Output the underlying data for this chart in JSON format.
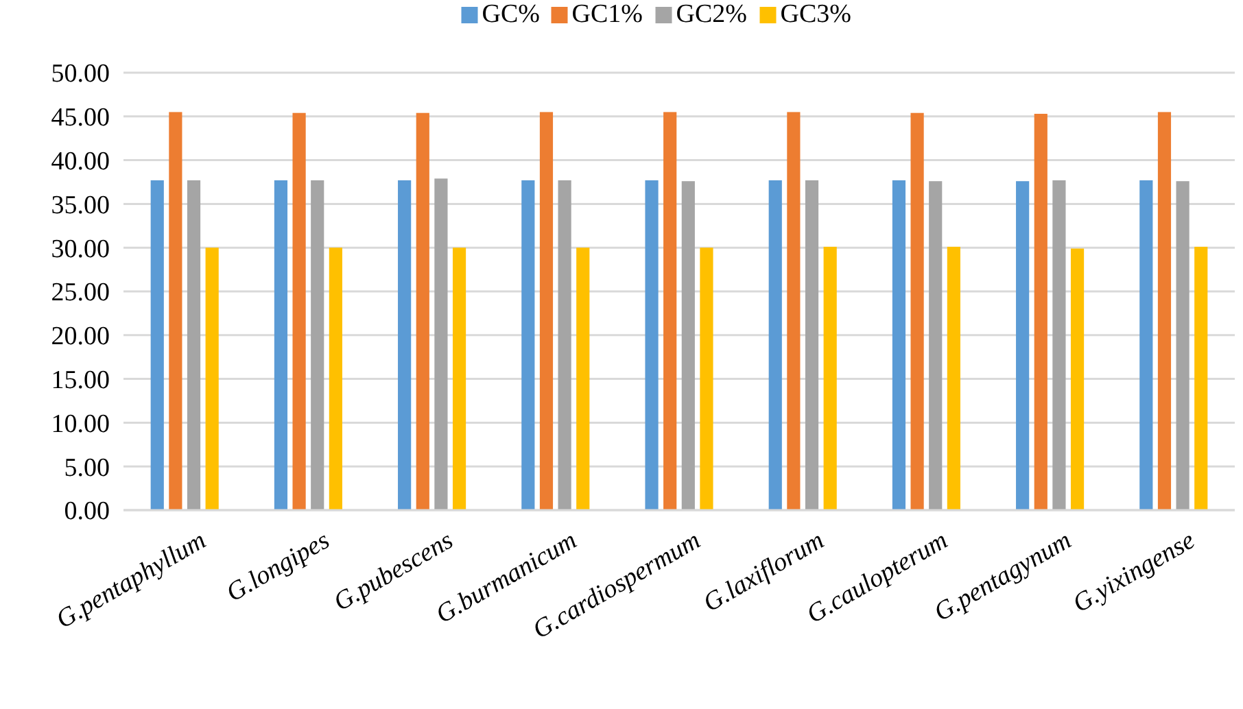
{
  "chart_data": {
    "type": "bar",
    "categories": [
      "G.pentaphyllum",
      "G.longipes",
      "G.pubescens",
      "G.burmanicum",
      "G.cardiospermum",
      "G.laxiflorum",
      "G.caulopterum",
      "G.pentagynum",
      "G.yixingense"
    ],
    "series": [
      {
        "name": "GC%",
        "color": "#5b9bd5",
        "values": [
          37.7,
          37.7,
          37.7,
          37.7,
          37.7,
          37.7,
          37.7,
          37.6,
          37.7
        ]
      },
      {
        "name": "GC1%",
        "color": "#ed7d31",
        "values": [
          45.5,
          45.4,
          45.4,
          45.5,
          45.5,
          45.5,
          45.4,
          45.3,
          45.5
        ]
      },
      {
        "name": "GC2%",
        "color": "#a5a5a5",
        "values": [
          37.7,
          37.7,
          37.9,
          37.7,
          37.6,
          37.7,
          37.6,
          37.7,
          37.6
        ]
      },
      {
        "name": "GC3%",
        "color": "#ffc000",
        "values": [
          30.0,
          30.0,
          30.0,
          30.0,
          30.0,
          30.1,
          30.1,
          29.9,
          30.1
        ]
      }
    ],
    "ylim": [
      0,
      50
    ],
    "yticks": [
      {
        "value": 0,
        "label": "0.00"
      },
      {
        "value": 5,
        "label": "5.00"
      },
      {
        "value": 10,
        "label": "10.00"
      },
      {
        "value": 15,
        "label": "15.00"
      },
      {
        "value": 20,
        "label": "20.00"
      },
      {
        "value": 25,
        "label": "25.00"
      },
      {
        "value": 30,
        "label": "30.00"
      },
      {
        "value": 35,
        "label": "35.00"
      },
      {
        "value": 40,
        "label": "40.00"
      },
      {
        "value": 45,
        "label": "45.00"
      },
      {
        "value": 50,
        "label": "50.00"
      }
    ],
    "grid": "y",
    "legend": "top"
  }
}
